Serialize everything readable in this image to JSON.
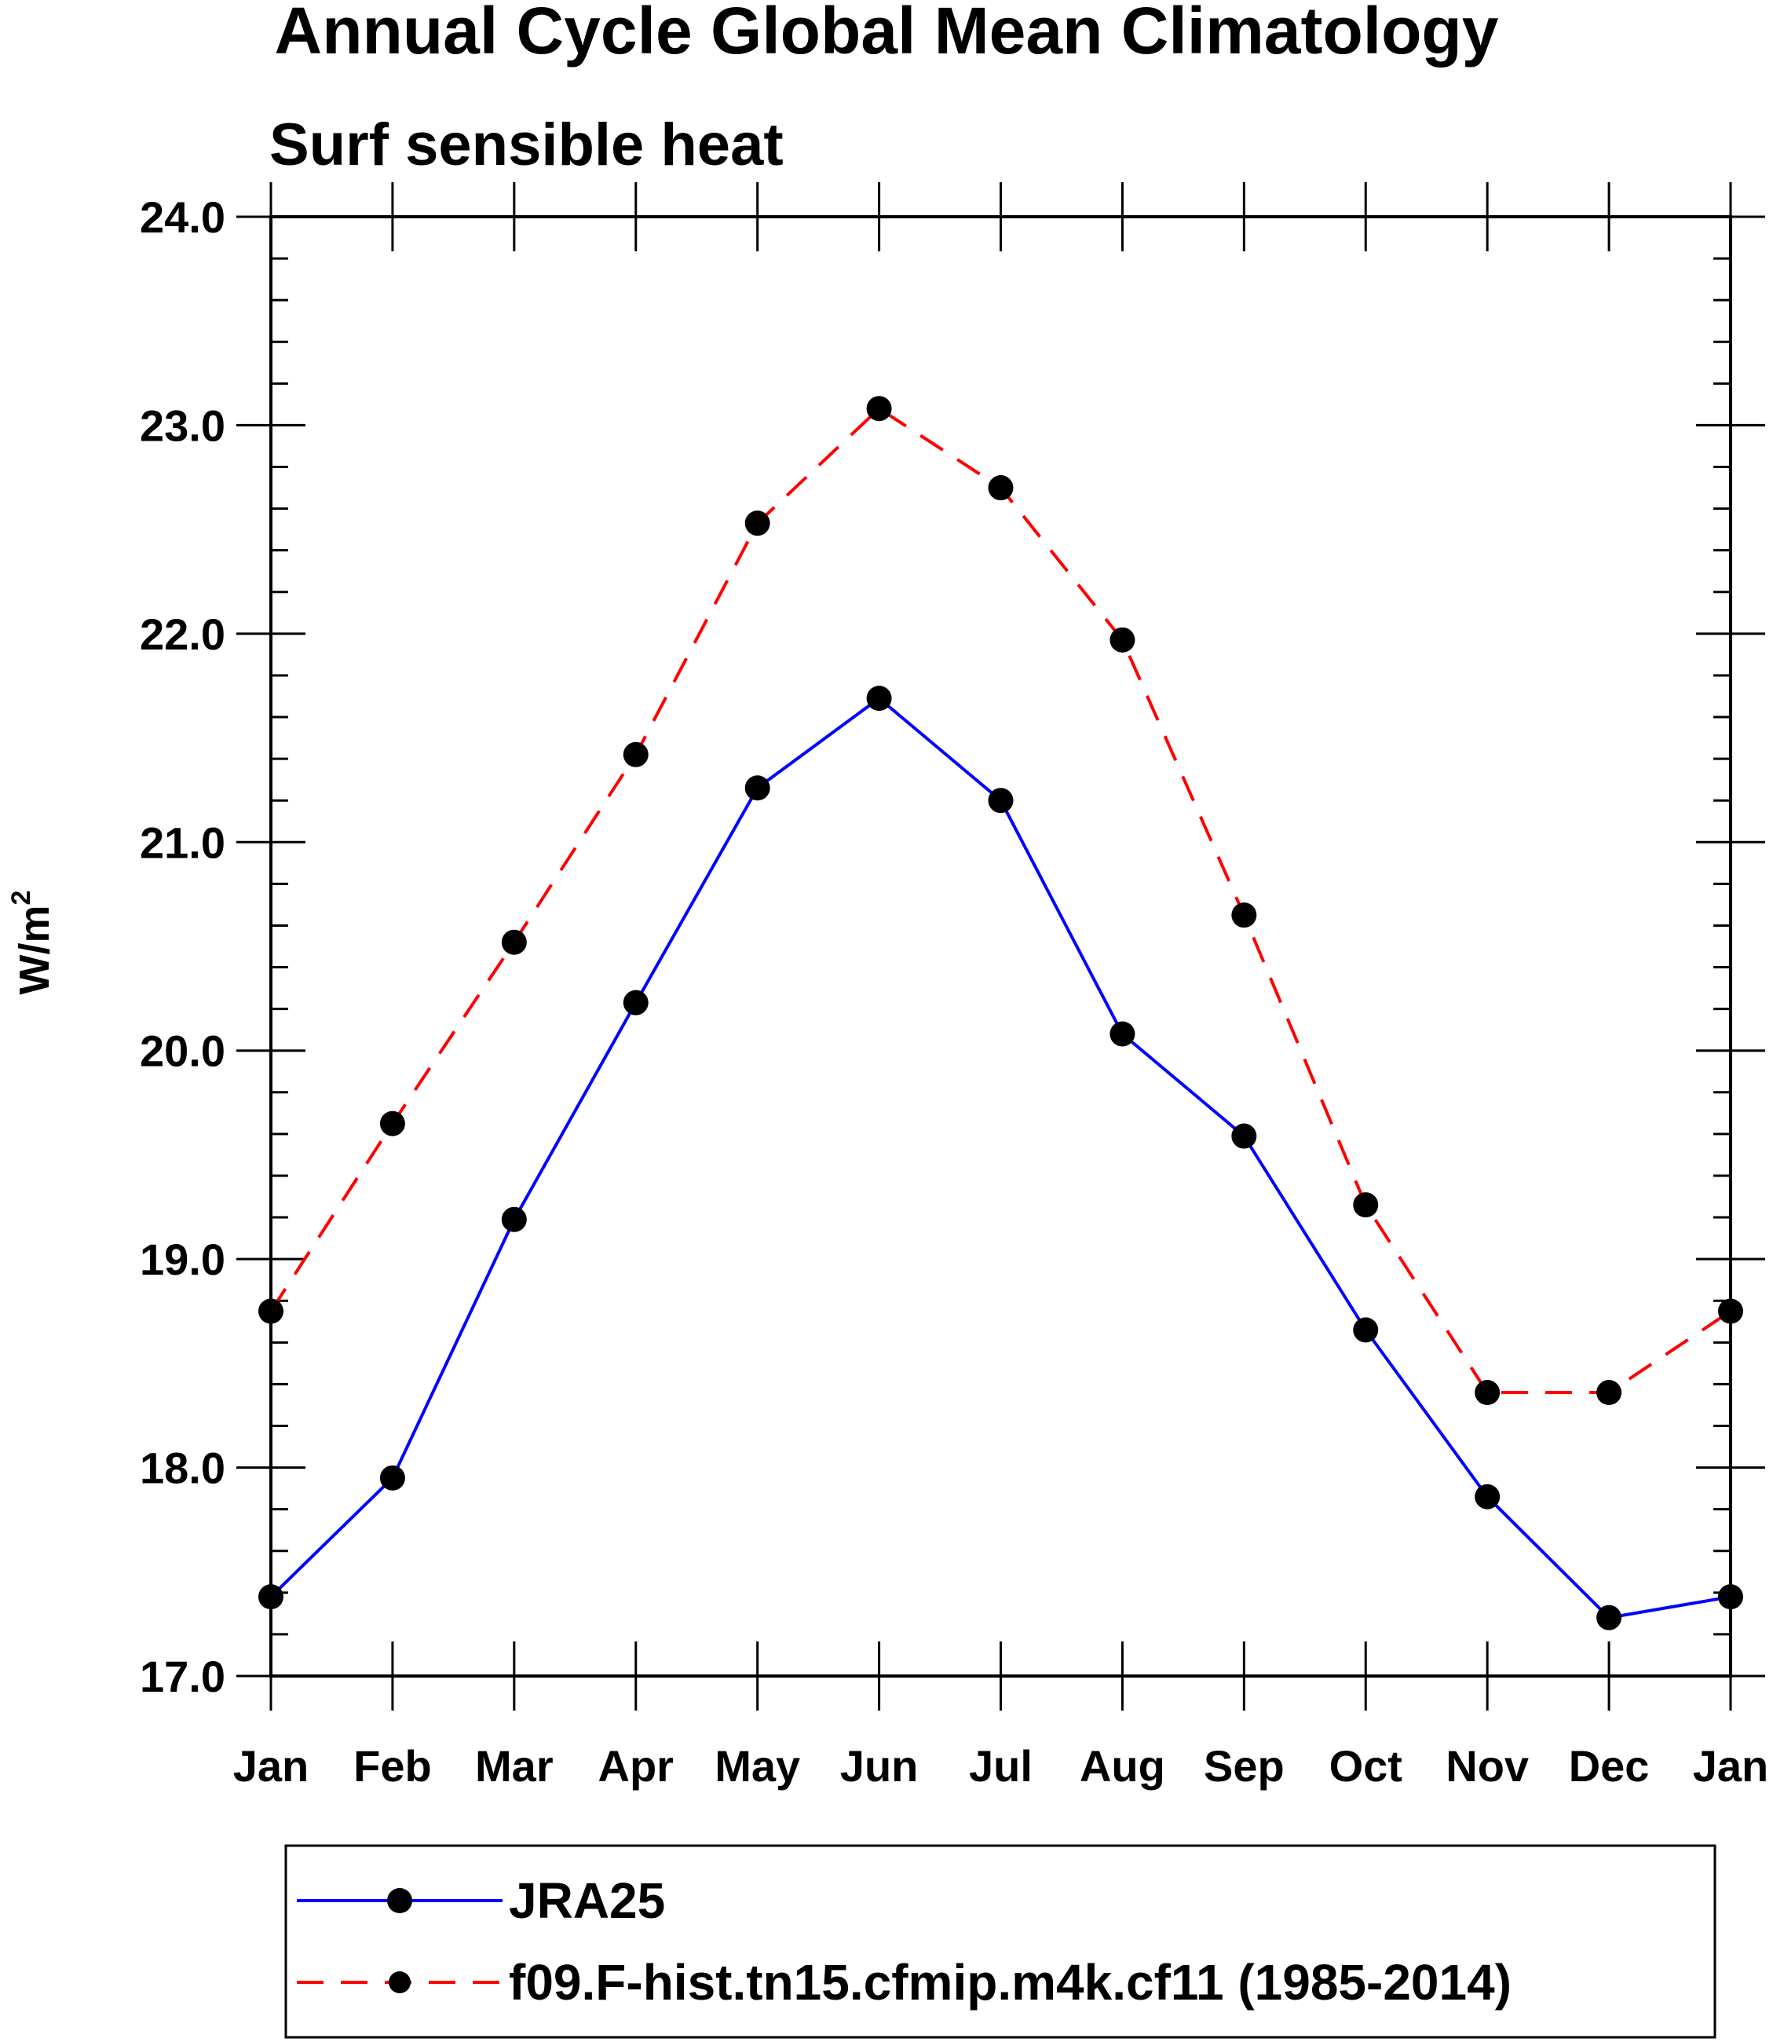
{
  "chart_data": {
    "type": "line",
    "title": "Annual Cycle Global Mean Climatology",
    "subtitle": "Surf sensible heat",
    "xlabel": "",
    "ylabel": "W/m",
    "ylabel_superscript": "2",
    "categories": [
      "Jan",
      "Feb",
      "Mar",
      "Apr",
      "May",
      "Jun",
      "Jul",
      "Aug",
      "Sep",
      "Oct",
      "Nov",
      "Dec",
      "Jan"
    ],
    "ylim": [
      17.0,
      24.0
    ],
    "yticks": [
      "17.0",
      "18.0",
      "19.0",
      "20.0",
      "21.0",
      "22.0",
      "23.0",
      "24.0"
    ],
    "legend_position": "bottom",
    "series": [
      {
        "name": "JRA25",
        "color": "#0000ff",
        "dash": "solid",
        "values": [
          17.38,
          17.95,
          19.19,
          20.23,
          21.26,
          21.69,
          21.2,
          20.08,
          19.59,
          18.66,
          17.86,
          17.28,
          17.38
        ]
      },
      {
        "name": "f09.F-hist.tn15.cfmip.m4k.cf11 (1985-2014)",
        "color": "#ff0000",
        "dash": "dashed",
        "values": [
          18.75,
          19.65,
          20.52,
          21.42,
          22.53,
          23.08,
          22.7,
          21.97,
          20.65,
          19.26,
          18.36,
          18.36,
          18.75
        ]
      }
    ]
  }
}
